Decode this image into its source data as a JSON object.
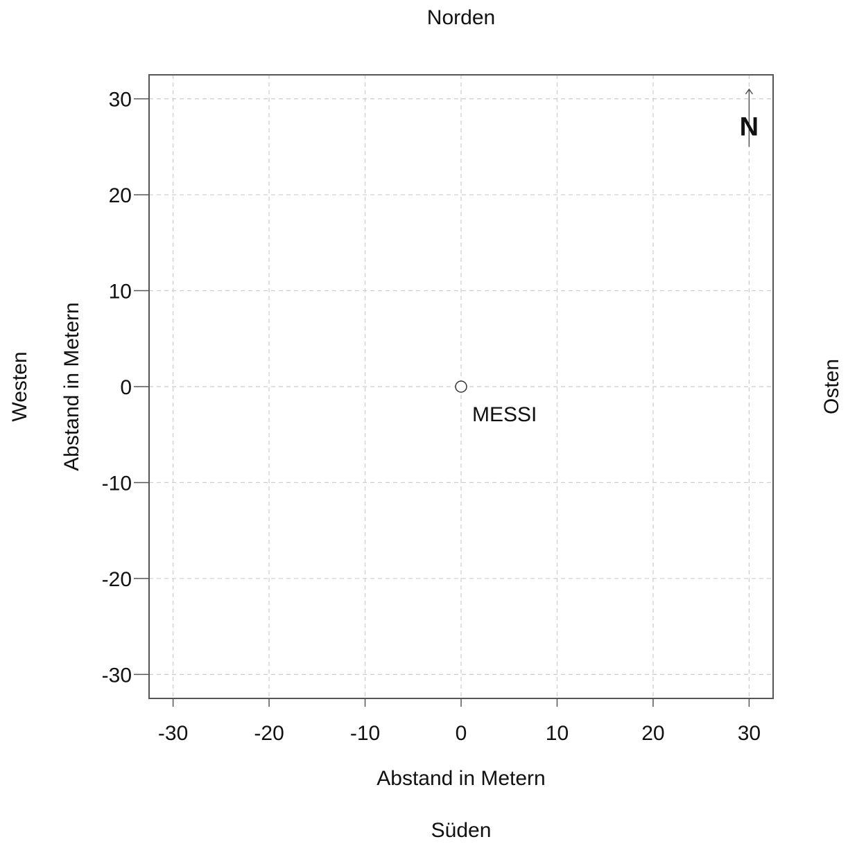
{
  "compass": {
    "top": "Norden",
    "bottom": "Süden",
    "left": "Westen",
    "right": "Osten"
  },
  "chart_data": {
    "type": "scatter",
    "xlabel": "Abstand in Metern",
    "ylabel": "Abstand in Metern",
    "xlim": [
      -32.5,
      32.5
    ],
    "ylim": [
      -32.5,
      32.5
    ],
    "xticks": [
      -30,
      -20,
      -10,
      0,
      10,
      20,
      30
    ],
    "yticks": [
      -30,
      -20,
      -10,
      0,
      10,
      20,
      30
    ],
    "grid": true,
    "points": [
      {
        "x": 0,
        "y": 0,
        "label": "MESSI"
      }
    ],
    "north_arrow": {
      "label": "N",
      "x": 30,
      "y_from": 25,
      "y_to": 31
    }
  },
  "colors": {
    "frame": "#555555",
    "grid": "#cccccc",
    "point_stroke": "#333333",
    "point_fill": "#ffffff",
    "text": "#111111"
  }
}
